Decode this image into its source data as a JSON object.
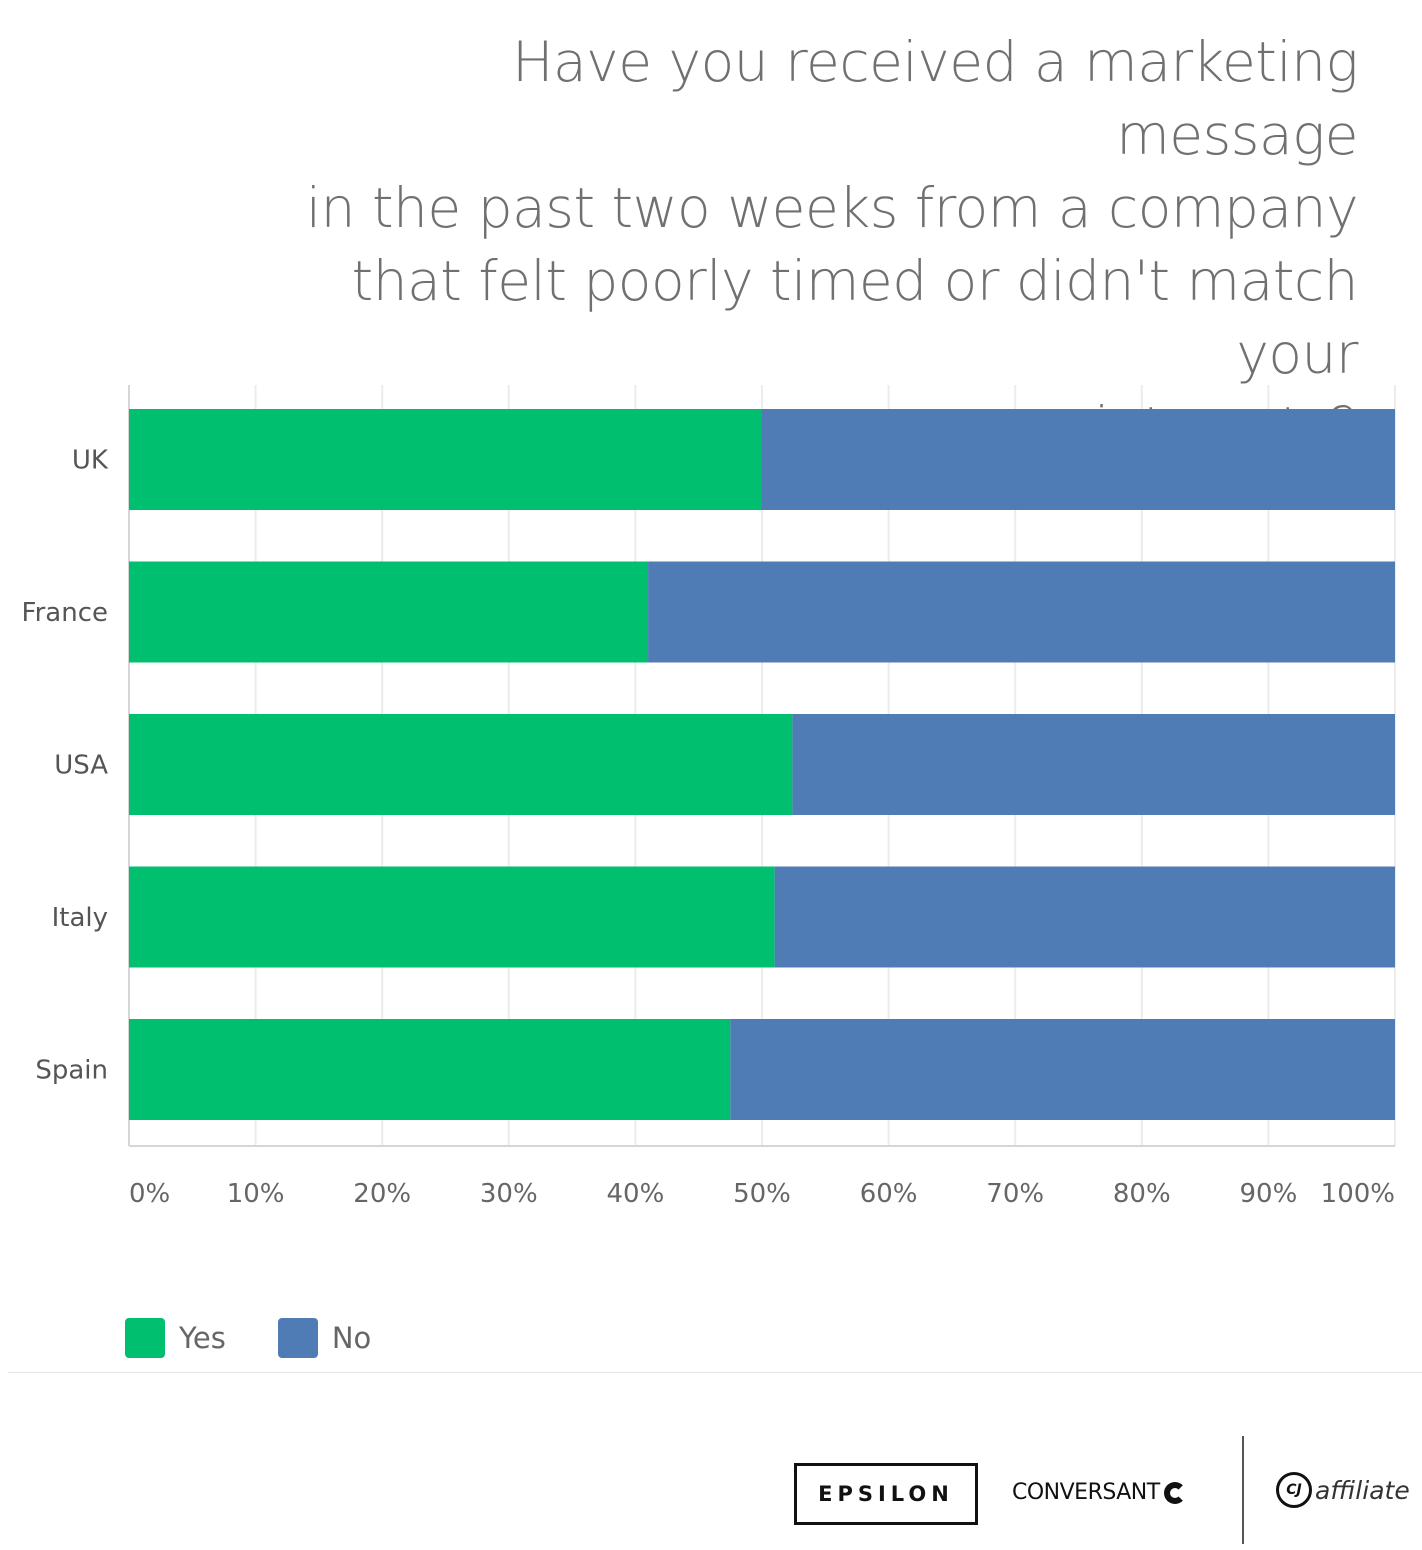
{
  "title_lines": [
    "Have you received a marketing message",
    "in the past two weeks from a company",
    "that felt poorly timed or didn't match your",
    "interests?"
  ],
  "chart_data": {
    "type": "bar",
    "orientation": "horizontal",
    "stacked": true,
    "title": "Have you received a marketing message in the past two weeks from a company that felt poorly timed or didn't match your interests?",
    "categories": [
      "UK",
      "France",
      "USA",
      "Italy",
      "Spain"
    ],
    "series": [
      {
        "name": "Yes",
        "color": "#00bf6f",
        "values": [
          50,
          41,
          52.4,
          51,
          47.5
        ]
      },
      {
        "name": "No",
        "color": "#507cb6",
        "values": [
          50,
          59,
          47.6,
          49,
          52.5
        ]
      }
    ],
    "xlim": [
      0,
      100
    ],
    "xticks": [
      "0%",
      "10%",
      "20%",
      "30%",
      "40%",
      "50%",
      "60%",
      "70%",
      "80%",
      "90%",
      "100%"
    ],
    "grid": true,
    "legend_position": "bottom-left"
  },
  "legend": [
    {
      "label": "Yes",
      "color": "#00bf6f"
    },
    {
      "label": "No",
      "color": "#507cb6"
    }
  ],
  "logos": {
    "epsilon": "EPSILON",
    "conversant": "CONVERSANT",
    "cj_mark": "CJ",
    "cj_text": "affiliate"
  }
}
